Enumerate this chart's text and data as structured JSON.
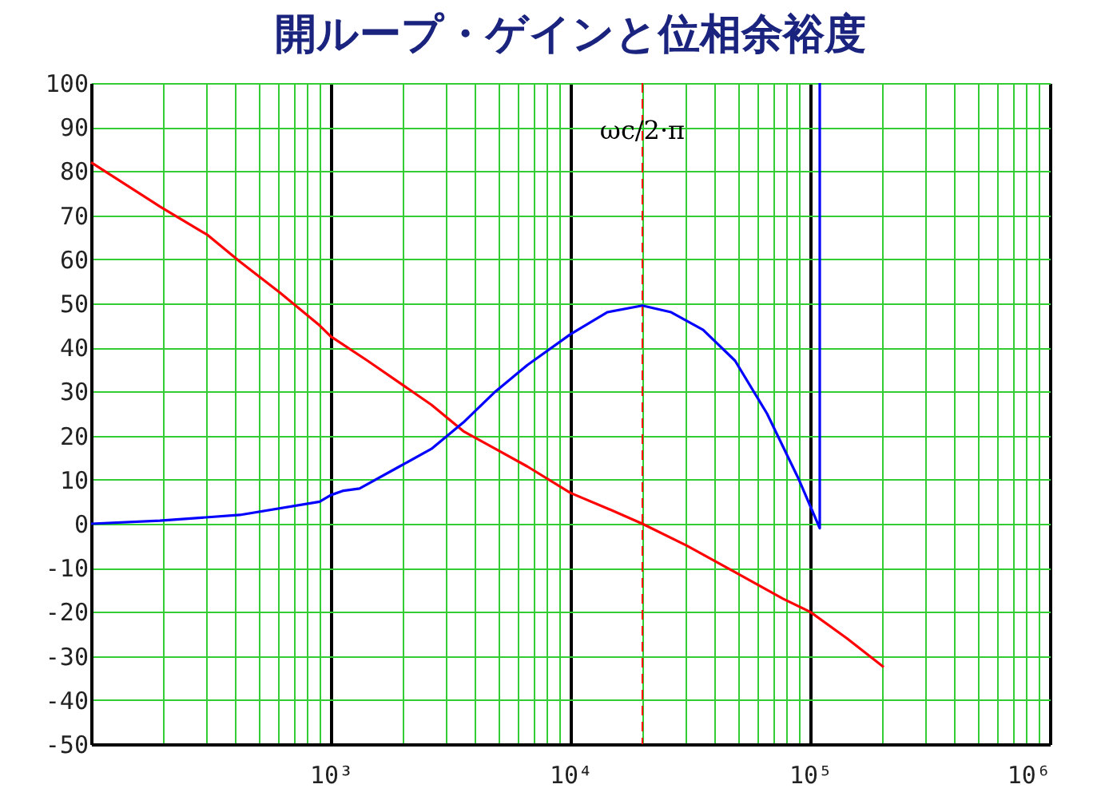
{
  "chart_data": {
    "type": "line",
    "title": "開ループ・ゲインと位相余裕度",
    "x": [
      100,
      193.5,
      306.7,
      416.9,
      611.9,
      898,
      1000,
      1130,
      1318,
      1423,
      1935,
      2630,
      3575,
      4860,
      6607,
      10000,
      14230,
      19950,
      26300,
      30670,
      35750,
      48600,
      66070,
      77020,
      89800,
      100000,
      109650,
      142300,
      202600
    ],
    "series": [
      {
        "color": "#ff0000",
        "values": [
          82,
          72,
          65.5,
          59.5,
          52.5,
          45,
          42.5,
          null,
          null,
          37,
          32,
          27,
          21,
          17,
          13,
          7,
          3.5,
          0,
          null,
          -5,
          null,
          -11,
          null,
          -17,
          null,
          -20,
          null,
          -26,
          -32.5
        ]
      },
      {
        "color": "#0000ff",
        "x": [
          100,
          193.5,
          416.9,
          898,
          1000,
          1130,
          1318,
          1935,
          2630,
          3575,
          4860,
          6607,
          10000,
          14230,
          19950,
          26300,
          35750,
          48600,
          66070,
          89800,
          109650,
          109650
        ],
        "values": [
          0,
          0.7,
          2,
          5,
          6.5,
          7.5,
          8,
          13,
          17,
          23,
          30,
          36,
          43,
          48,
          49.5,
          48,
          44,
          37,
          25,
          10,
          -1,
          100
        ]
      }
    ],
    "log": "x",
    "xlim": [
      100,
      1000000
    ],
    "ylim": [
      -50,
      100
    ],
    "xticks": [
      {
        "value": 100,
        "label": null
      },
      {
        "value": 200,
        "label": null
      },
      {
        "value": 300,
        "label": null
      },
      {
        "value": 400,
        "label": null
      },
      {
        "value": 500,
        "label": null
      },
      {
        "value": 600,
        "label": null
      },
      {
        "value": 700,
        "label": null
      },
      {
        "value": 800,
        "label": null
      },
      {
        "value": 900,
        "label": null
      },
      {
        "value": 1000,
        "label": "10³"
      },
      {
        "value": 2000,
        "label": null
      },
      {
        "value": 3000,
        "label": null
      },
      {
        "value": 4000,
        "label": null
      },
      {
        "value": 5000,
        "label": null
      },
      {
        "value": 6000,
        "label": null
      },
      {
        "value": 7000,
        "label": null
      },
      {
        "value": 8000,
        "label": null
      },
      {
        "value": 9000,
        "label": null
      },
      {
        "value": 10000,
        "label": "10⁴"
      },
      {
        "value": 20000,
        "label": null
      },
      {
        "value": 30000,
        "label": null
      },
      {
        "value": 40000,
        "label": null
      },
      {
        "value": 50000,
        "label": null
      },
      {
        "value": 60000,
        "label": null
      },
      {
        "value": 70000,
        "label": null
      },
      {
        "value": 80000,
        "label": null
      },
      {
        "value": 90000,
        "label": null
      },
      {
        "value": 100000,
        "label": "10⁵"
      },
      {
        "value": 200000,
        "label": null
      },
      {
        "value": 300000,
        "label": null
      },
      {
        "value": 400000,
        "label": null
      },
      {
        "value": 500000,
        "label": null
      },
      {
        "value": 600000,
        "label": null
      },
      {
        "value": 700000,
        "label": null
      },
      {
        "value": 800000,
        "label": null
      },
      {
        "value": 900000,
        "label": null
      },
      {
        "value": 1000000,
        "label": "10⁶"
      }
    ],
    "yticks": [
      -50,
      -40,
      -30,
      -20,
      -10,
      0,
      10,
      20,
      30,
      40,
      50,
      60,
      70,
      80,
      90,
      100
    ],
    "grid": true,
    "line_style": "solid",
    "marker": "none",
    "ref_lines": [
      {
        "axis": "x",
        "value": 19950,
        "label": "ωc/2·π",
        "color": "#ff0000",
        "line_style": "dashed"
      }
    ]
  }
}
